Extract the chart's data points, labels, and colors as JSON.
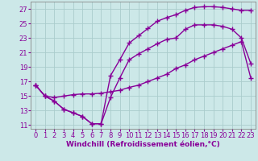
{
  "background_color": "#cce8e8",
  "grid_color": "#aacccc",
  "line_color": "#880099",
  "marker": "+",
  "markersize": 4,
  "linewidth": 1.0,
  "xlabel": "Windchill (Refroidissement éolien,°C)",
  "xlabel_fontsize": 6.5,
  "xlabel_color": "#880099",
  "tick_fontsize": 6.0,
  "tick_color": "#880099",
  "xlim": [
    -0.5,
    23.5
  ],
  "ylim": [
    10.5,
    28.0
  ],
  "xticks": [
    0,
    1,
    2,
    3,
    4,
    5,
    6,
    7,
    8,
    9,
    10,
    11,
    12,
    13,
    14,
    15,
    16,
    17,
    18,
    19,
    20,
    21,
    22,
    23
  ],
  "yticks": [
    11,
    13,
    15,
    17,
    19,
    21,
    23,
    25,
    27
  ],
  "line1_x": [
    0,
    1,
    2,
    3,
    4,
    5,
    6,
    7,
    8,
    9,
    10,
    11,
    12,
    13,
    14,
    15,
    16,
    17,
    18,
    19,
    20,
    21,
    22,
    23
  ],
  "line1_y": [
    16.5,
    15.0,
    14.3,
    13.2,
    12.7,
    12.2,
    11.2,
    11.2,
    14.8,
    17.5,
    20.0,
    20.8,
    21.5,
    22.2,
    22.8,
    23.0,
    24.2,
    24.8,
    24.8,
    24.8,
    24.6,
    24.2,
    23.0,
    19.5
  ],
  "line2_x": [
    0,
    1,
    2,
    3,
    4,
    5,
    6,
    7,
    8,
    9,
    10,
    11,
    12,
    13,
    14,
    15,
    16,
    17,
    18,
    19,
    20,
    21,
    22,
    23
  ],
  "line2_y": [
    16.5,
    15.0,
    14.8,
    15.0,
    15.2,
    15.3,
    15.3,
    15.4,
    15.6,
    15.8,
    16.2,
    16.5,
    17.0,
    17.5,
    18.0,
    18.8,
    19.3,
    20.0,
    20.5,
    21.0,
    21.5,
    22.0,
    22.5,
    17.5
  ],
  "line3_x": [
    0,
    1,
    2,
    3,
    4,
    5,
    6,
    7,
    8,
    9,
    10,
    11,
    12,
    13,
    14,
    15,
    16,
    17,
    18,
    19,
    20,
    21,
    22,
    23
  ],
  "line3_y": [
    16.5,
    15.0,
    14.3,
    13.2,
    12.7,
    12.2,
    11.2,
    11.2,
    17.8,
    20.0,
    22.3,
    23.3,
    24.3,
    25.3,
    25.8,
    26.2,
    26.8,
    27.2,
    27.3,
    27.3,
    27.2,
    27.0,
    26.8,
    26.8
  ]
}
